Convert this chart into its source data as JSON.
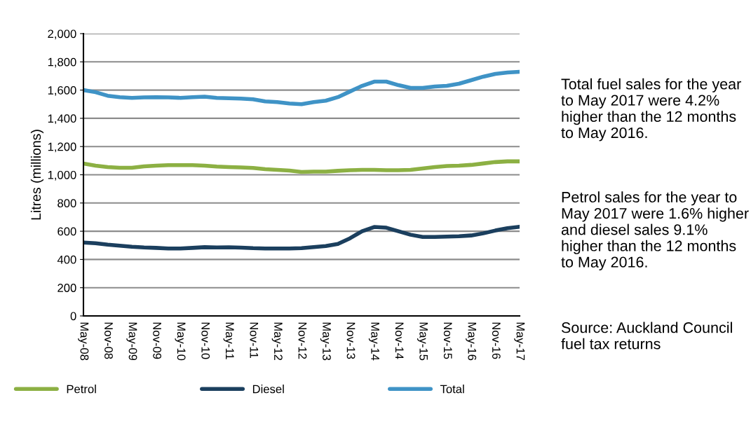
{
  "chart_data": {
    "type": "line",
    "ylabel": "Litres (millions)",
    "categories": [
      "May-08",
      null,
      "Nov-08",
      null,
      "May-09",
      null,
      "Nov-09",
      null,
      "May-10",
      null,
      "Nov-10",
      null,
      "May-11",
      null,
      "Nov-11",
      null,
      "May-12",
      null,
      "Nov-12",
      null,
      "May-13",
      null,
      "Nov-13",
      null,
      "May-14",
      null,
      "Nov-14",
      null,
      "May-15",
      null,
      "Nov-15",
      null,
      "May-16",
      null,
      "Nov-16",
      null,
      "May-17"
    ],
    "series": [
      {
        "name": "Petrol",
        "color": "#8cb043",
        "values": [
          1080,
          1065,
          1055,
          1050,
          1050,
          1060,
          1065,
          1068,
          1068,
          1068,
          1065,
          1058,
          1055,
          1052,
          1048,
          1040,
          1035,
          1030,
          1020,
          1022,
          1022,
          1028,
          1032,
          1035,
          1035,
          1032,
          1032,
          1035,
          1045,
          1055,
          1062,
          1065,
          1070,
          1080,
          1090,
          1095,
          1095
        ]
      },
      {
        "name": "Diesel",
        "color": "#1b3f5e",
        "values": [
          520,
          515,
          505,
          498,
          490,
          485,
          482,
          478,
          478,
          482,
          487,
          485,
          486,
          484,
          480,
          478,
          478,
          478,
          480,
          488,
          495,
          510,
          550,
          600,
          630,
          625,
          600,
          575,
          560,
          560,
          562,
          565,
          570,
          585,
          605,
          622,
          632
        ]
      },
      {
        "name": "Total",
        "color": "#3f93c6",
        "values": [
          1600,
          1585,
          1560,
          1550,
          1545,
          1548,
          1550,
          1548,
          1545,
          1550,
          1553,
          1545,
          1542,
          1540,
          1535,
          1520,
          1515,
          1505,
          1500,
          1515,
          1525,
          1550,
          1590,
          1630,
          1660,
          1660,
          1635,
          1615,
          1615,
          1625,
          1630,
          1645,
          1670,
          1695,
          1715,
          1725,
          1730
        ]
      }
    ],
    "ylim": [
      0,
      2000
    ],
    "yticks": [
      0,
      200,
      400,
      600,
      800,
      {
        "value": 1000,
        "label": "1,000"
      },
      {
        "value": 1200,
        "label": "1,200"
      },
      {
        "value": 1400,
        "label": "1,400"
      },
      {
        "value": 1600,
        "label": "1,600"
      },
      {
        "value": 1800,
        "label": "1,800"
      },
      {
        "value": 2000,
        "label": "2,000"
      }
    ],
    "grid": "y",
    "legend": "bottom",
    "marker": "none",
    "line_style": "solid",
    "annotations": [
      "Total fuel sales for the year to May 2017 were 4.2% higher than the 12 months to May 2016.",
      "Petrol sales for the year to May 2017 were 1.6% higher and diesel sales 9.1% higher than the 12 months to May 2016.",
      "Source: Auckland Council fuel tax returns"
    ]
  }
}
